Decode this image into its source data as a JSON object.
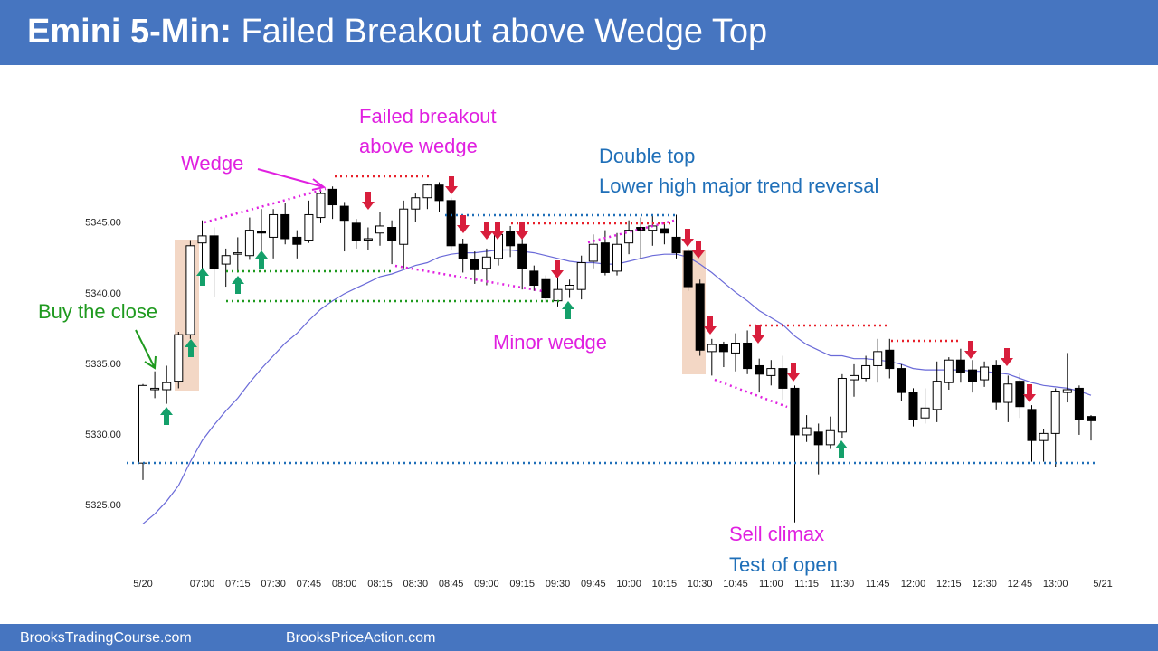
{
  "chart_data": {
    "type": "candlestick",
    "title_prefix": "Emini 5-Min:",
    "title": "Failed Breakout above Wedge Top",
    "footer": [
      "BrooksTradingCourse.com",
      "BrooksPriceAction.com"
    ],
    "annotations": [
      "Failed breakout",
      "above wedge",
      "Wedge",
      "Double top",
      "Lower high major trend reversal",
      "Buy the close",
      "Minor wedge",
      "Sell climax",
      "Test of open"
    ],
    "categories": [
      "5/20",
      null,
      null,
      null,
      null,
      "07:00",
      null,
      null,
      "07:15",
      null,
      null,
      "07:30",
      null,
      null,
      "07:45",
      null,
      null,
      "08:00",
      null,
      null,
      "08:15",
      null,
      null,
      "08:30",
      null,
      null,
      "08:45",
      null,
      null,
      "09:00",
      null,
      null,
      "09:15",
      null,
      null,
      "09:30",
      null,
      null,
      "09:45",
      null,
      null,
      "10:00",
      null,
      null,
      "10:15",
      null,
      null,
      "10:30",
      null,
      null,
      "10:45",
      null,
      null,
      "11:00",
      null,
      null,
      "11:15",
      null,
      null,
      "11:30",
      null,
      null,
      "11:45",
      null,
      null,
      "12:00",
      null,
      null,
      "12:15",
      null,
      null,
      "12:30",
      null,
      null,
      "12:45",
      null,
      null,
      "13:00",
      null,
      null,
      null,
      "5/21"
    ],
    "open": [
      5328,
      5333.2,
      5333.2,
      5333.8,
      5337.1,
      5343.6,
      5344.1,
      5342.1,
      5342.8,
      5342.7,
      5344.4,
      5344.0,
      5345.6,
      5344.0,
      5343.8,
      5345.4,
      5347.4,
      5346.2,
      5345.0,
      5343.9,
      5344.3,
      5344.7,
      5343.5,
      5346.0,
      5346.8,
      5347.7,
      5346.6,
      5343.5,
      5342.4,
      5341.8,
      5342.5,
      5344.4,
      5343.5,
      5341.6,
      5341.0,
      5339.5,
      5340.3,
      5340.3,
      5342.3,
      5343.6,
      5341.6,
      5343.6,
      5344.7,
      5344.5,
      5344.6,
      5344.0,
      5343.0,
      5340.7,
      5335.9,
      5336.4,
      5335.8,
      5336.5,
      5334.9,
      5334.2,
      5334.7,
      5333.3,
      5330.0,
      5330.2,
      5329.3,
      5330.2,
      5333.9,
      5334.0,
      5334.9,
      5336.0,
      5334.7,
      5333.0,
      5331.2,
      5331.8,
      5333.7,
      5335.3,
      5334.6,
      5333.9,
      5334.9,
      5332.3,
      5333.8,
      5331.8,
      5329.6,
      5330.1,
      5333.0,
      5333.3,
      5331.3,
      null
    ],
    "high": [
      5333.6,
      5334.5,
      5334.9,
      5337.3,
      5343.8,
      5345.2,
      5344.7,
      5343.2,
      5344.0,
      5345.4,
      5346.0,
      5346.0,
      5346.4,
      5344.5,
      5346.6,
      5347.4,
      5347.6,
      5346.5,
      5345.3,
      5344.7,
      5345.8,
      5345.2,
      5346.6,
      5347.1,
      5347.8,
      5347.9,
      5346.8,
      5343.9,
      5343.0,
      5343.2,
      5344.5,
      5344.8,
      5344.2,
      5342.0,
      5341.3,
      5341.2,
      5341.0,
      5342.7,
      5344.2,
      5344.5,
      5344.3,
      5345.2,
      5345.4,
      5345.5,
      5345.1,
      5345.6,
      5343.2,
      5341.0,
      5336.8,
      5336.6,
      5337.2,
      5337.4,
      5335.4,
      5335.3,
      5335.6,
      5333.5,
      5331.4,
      5330.8,
      5331.3,
      5334.3,
      5335.0,
      5335.6,
      5336.8,
      5336.8,
      5335.0,
      5333.3,
      5333.3,
      5335.2,
      5335.5,
      5336.1,
      5335.3,
      5335.2,
      5335.3,
      5334.2,
      5334.4,
      5332.1,
      5330.4,
      5333.3,
      5335.8,
      5333.5,
      5331.4,
      null
    ],
    "low": [
      5326.8,
      5332.6,
      5332.2,
      5333.3,
      5336.8,
      5341.6,
      5339.8,
      5340.5,
      5341.5,
      5342.4,
      5343.0,
      5342.5,
      5343.5,
      5342.5,
      5343.6,
      5345.0,
      5345.3,
      5343.0,
      5343.2,
      5343.1,
      5343.4,
      5342.1,
      5341.8,
      5345.1,
      5346.0,
      5345.8,
      5343.1,
      5341.5,
      5340.7,
      5340.6,
      5342.0,
      5342.6,
      5340.3,
      5340.2,
      5339.4,
      5339.1,
      5339.7,
      5339.6,
      5341.8,
      5341.3,
      5341.3,
      5342.8,
      5342.5,
      5343.4,
      5343.5,
      5342.5,
      5340.2,
      5335.6,
      5334.2,
      5334.8,
      5334.5,
      5334.3,
      5333.0,
      5333.5,
      5332.5,
      5323.8,
      5329.5,
      5327.2,
      5329.0,
      5329.8,
      5332.7,
      5333.8,
      5333.7,
      5334.0,
      5332.4,
      5330.6,
      5330.8,
      5330.9,
      5333.2,
      5333.7,
      5333.0,
      5333.4,
      5331.8,
      5330.9,
      5331.2,
      5328.1,
      5328.1,
      5327.7,
      5332.3,
      5330.0,
      5329.6,
      null
    ],
    "close": [
      5333.5,
      5333.3,
      5333.7,
      5337.1,
      5343.4,
      5344.1,
      5341.8,
      5342.7,
      5342.9,
      5344.5,
      5344.3,
      5345.6,
      5343.9,
      5343.5,
      5345.6,
      5347.1,
      5346.3,
      5345.2,
      5343.8,
      5343.9,
      5344.8,
      5343.8,
      5346.0,
      5346.8,
      5347.7,
      5346.6,
      5343.4,
      5342.5,
      5341.7,
      5342.6,
      5344.2,
      5343.4,
      5341.8,
      5340.6,
      5339.7,
      5340.3,
      5340.6,
      5342.2,
      5343.5,
      5341.5,
      5343.5,
      5344.5,
      5344.5,
      5344.8,
      5344.3,
      5342.9,
      5340.5,
      5336.0,
      5336.4,
      5335.9,
      5336.5,
      5334.7,
      5334.3,
      5334.7,
      5333.3,
      5330.0,
      5330.5,
      5329.3,
      5330.3,
      5334.0,
      5334.2,
      5334.9,
      5335.9,
      5334.7,
      5333.0,
      5331.1,
      5331.9,
      5333.8,
      5335.3,
      5334.4,
      5333.8,
      5334.8,
      5332.3,
      5333.6,
      5332.0,
      5329.6,
      5330.1,
      5333.1,
      5333.2,
      5331.1,
      5331.0,
      null
    ],
    "up_color": "#ffffff",
    "down_color": "#000000",
    "moving_average": {
      "color": "#6a6ad8",
      "values": [
        5323.7,
        5324.4,
        5325.3,
        5326.4,
        5328.1,
        5329.6,
        5330.7,
        5331.7,
        5332.6,
        5333.7,
        5334.7,
        5335.6,
        5336.5,
        5337.2,
        5338.1,
        5338.9,
        5339.5,
        5340.0,
        5340.4,
        5340.8,
        5341.2,
        5341.4,
        5341.7,
        5342.0,
        5342.2,
        5342.6,
        5342.8,
        5342.9,
        5342.9,
        5343.0,
        5343.1,
        5343.1,
        5343.0,
        5342.9,
        5342.7,
        5342.5,
        5342.3,
        5342.2,
        5342.2,
        5342.1,
        5342.1,
        5342.3,
        5342.5,
        5342.7,
        5342.8,
        5342.8,
        5342.6,
        5342.1,
        5341.5,
        5340.8,
        5340.1,
        5339.5,
        5338.8,
        5338.3,
        5337.8,
        5337.0,
        5336.4,
        5336.0,
        5335.6,
        5335.6,
        5335.4,
        5335.4,
        5335.3,
        5335.2,
        5335.0,
        5334.7,
        5334.6,
        5334.6,
        5334.6,
        5334.6,
        5334.5,
        5334.5,
        5334.4,
        5334.3,
        5334.0,
        5333.7,
        5333.5,
        5333.4,
        5333.3,
        5333.1,
        5332.8,
        null
      ]
    },
    "ylim": [
      5322.5,
      5348
    ],
    "yticks": [
      {
        "value": 5325,
        "label": "5325.00"
      },
      {
        "value": 5330,
        "label": "5330.00"
      },
      {
        "value": 5335,
        "label": "5335.00"
      },
      {
        "value": 5340,
        "label": "5340.00"
      },
      {
        "value": 5345,
        "label": "5345.00"
      }
    ],
    "grid": false
  }
}
